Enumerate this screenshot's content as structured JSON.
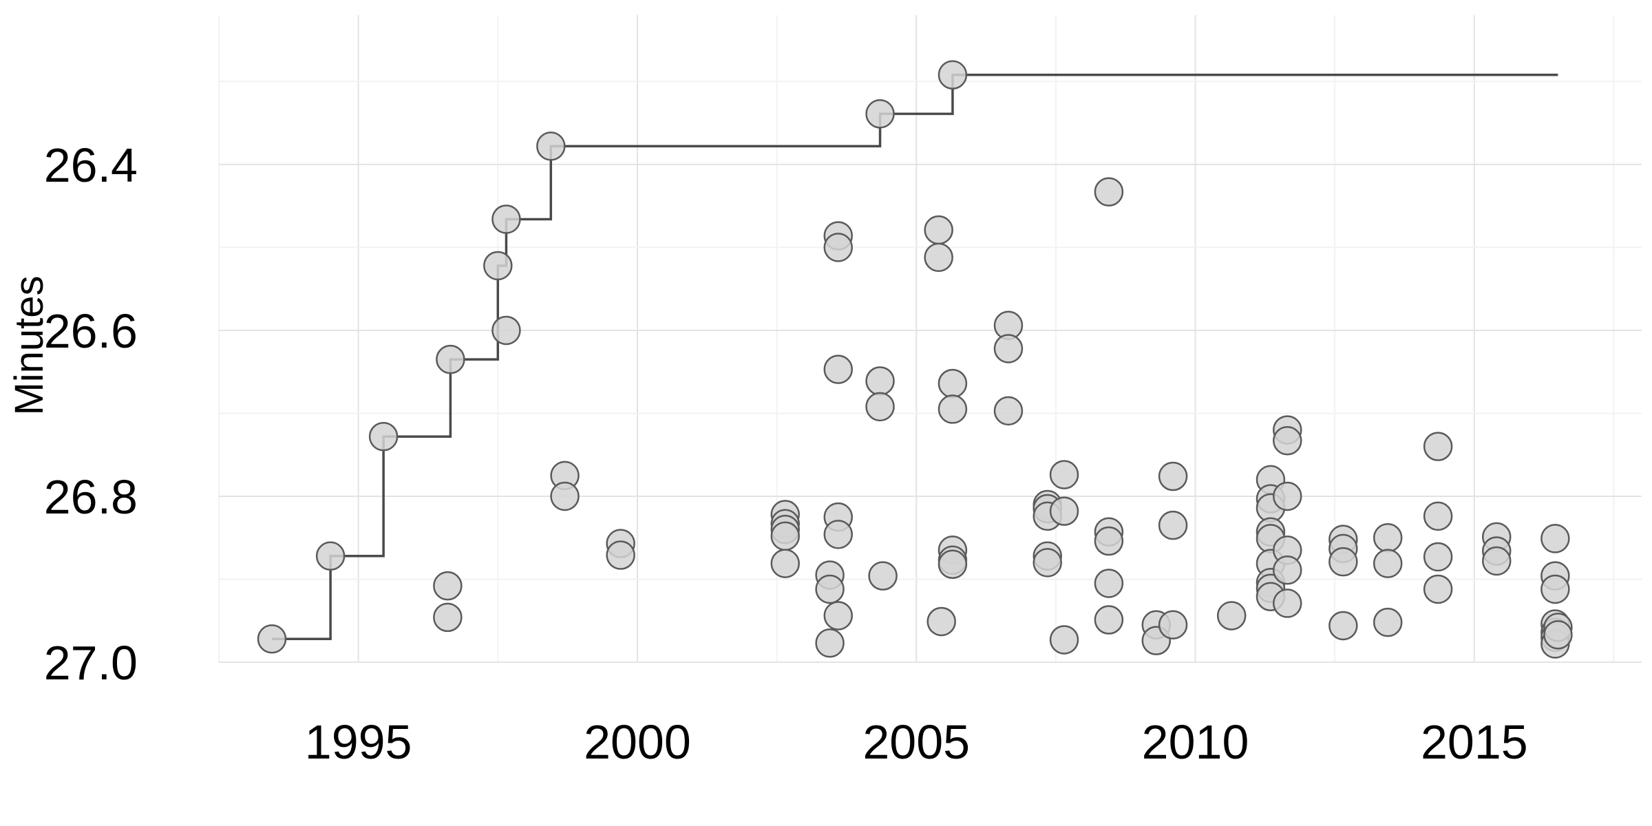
{
  "chart_data": {
    "type": "scatter",
    "title": "",
    "xlabel": "",
    "ylabel": "Minutes",
    "x_unit": "year",
    "xlim": [
      1992.5,
      2018
    ],
    "ylim": [
      27.0,
      26.22
    ],
    "y_axis_inverted": true,
    "x_ticks": [
      1995,
      2000,
      2005,
      2010,
      2015
    ],
    "x_tick_labels": [
      "1995",
      "2000",
      "2005",
      "2010",
      "2015"
    ],
    "y_ticks": [
      26.4,
      26.6,
      26.8,
      27.0
    ],
    "y_tick_labels": [
      "26.4",
      "26.6",
      "26.8",
      "27.0"
    ],
    "grid": true,
    "legend": "none",
    "colors": {
      "point_fill": "#d3d3d3",
      "point_stroke": "#5a5a5a",
      "line": "#4a4a4a",
      "grid_major": "#e3e3e3",
      "grid_minor": "#f2f2f2"
    },
    "series": [
      {
        "type": "scatter",
        "points": [
          [
            1993.45,
            26.972
          ],
          [
            1994.5,
            26.872
          ],
          [
            1995.45,
            26.728
          ],
          [
            1996.6,
            26.908
          ],
          [
            1996.6,
            26.946
          ],
          [
            1996.65,
            26.635
          ],
          [
            1997.5,
            26.522
          ],
          [
            1997.65,
            26.466
          ],
          [
            1997.65,
            26.6
          ],
          [
            1998.45,
            26.378
          ],
          [
            1998.7,
            26.775
          ],
          [
            1998.7,
            26.8
          ],
          [
            1999.7,
            26.857
          ],
          [
            1999.7,
            26.871
          ],
          [
            2002.65,
            26.822
          ],
          [
            2002.65,
            26.833
          ],
          [
            2002.65,
            26.84
          ],
          [
            2002.65,
            26.848
          ],
          [
            2002.65,
            26.881
          ],
          [
            2003.45,
            26.895
          ],
          [
            2003.45,
            26.912
          ],
          [
            2003.45,
            26.977
          ],
          [
            2003.6,
            26.486
          ],
          [
            2003.6,
            26.5
          ],
          [
            2003.6,
            26.647
          ],
          [
            2003.6,
            26.825
          ],
          [
            2003.6,
            26.846
          ],
          [
            2003.6,
            26.944
          ],
          [
            2004.35,
            26.339
          ],
          [
            2004.35,
            26.661
          ],
          [
            2004.35,
            26.692
          ],
          [
            2004.4,
            26.896
          ],
          [
            2005.4,
            26.479
          ],
          [
            2005.4,
            26.512
          ],
          [
            2005.45,
            26.951
          ],
          [
            2005.65,
            26.292
          ],
          [
            2005.65,
            26.664
          ],
          [
            2005.65,
            26.695
          ],
          [
            2005.65,
            26.865
          ],
          [
            2005.65,
            26.877
          ],
          [
            2005.65,
            26.882
          ],
          [
            2006.65,
            26.594
          ],
          [
            2006.65,
            26.622
          ],
          [
            2006.65,
            26.697
          ],
          [
            2007.35,
            26.81
          ],
          [
            2007.35,
            26.815
          ],
          [
            2007.35,
            26.824
          ],
          [
            2007.35,
            26.872
          ],
          [
            2007.35,
            26.88
          ],
          [
            2007.65,
            26.774
          ],
          [
            2007.65,
            26.818
          ],
          [
            2007.65,
            26.973
          ],
          [
            2008.45,
            26.433
          ],
          [
            2008.45,
            26.843
          ],
          [
            2008.45,
            26.854
          ],
          [
            2008.45,
            26.905
          ],
          [
            2008.45,
            26.949
          ],
          [
            2009.3,
            26.955
          ],
          [
            2009.3,
            26.974
          ],
          [
            2009.6,
            26.776
          ],
          [
            2009.6,
            26.835
          ],
          [
            2009.6,
            26.955
          ],
          [
            2010.65,
            26.944
          ],
          [
            2011.35,
            26.78
          ],
          [
            2011.35,
            26.803
          ],
          [
            2011.35,
            26.814
          ],
          [
            2011.35,
            26.843
          ],
          [
            2011.35,
            26.851
          ],
          [
            2011.35,
            26.881
          ],
          [
            2011.35,
            26.904
          ],
          [
            2011.35,
            26.911
          ],
          [
            2011.35,
            26.921
          ],
          [
            2011.65,
            26.72
          ],
          [
            2011.65,
            26.733
          ],
          [
            2011.65,
            26.8
          ],
          [
            2011.65,
            26.865
          ],
          [
            2011.65,
            26.889
          ],
          [
            2011.65,
            26.929
          ],
          [
            2012.65,
            26.852
          ],
          [
            2012.65,
            26.863
          ],
          [
            2012.65,
            26.879
          ],
          [
            2012.65,
            26.956
          ],
          [
            2013.45,
            26.85
          ],
          [
            2013.45,
            26.881
          ],
          [
            2013.45,
            26.952
          ],
          [
            2014.35,
            26.74
          ],
          [
            2014.35,
            26.824
          ],
          [
            2014.35,
            26.873
          ],
          [
            2014.35,
            26.912
          ],
          [
            2015.4,
            26.849
          ],
          [
            2015.4,
            26.866
          ],
          [
            2015.4,
            26.878
          ],
          [
            2016.45,
            26.851
          ],
          [
            2016.45,
            26.896
          ],
          [
            2016.45,
            26.912
          ],
          [
            2016.45,
            26.954
          ],
          [
            2016.45,
            26.964
          ],
          [
            2016.45,
            26.97
          ],
          [
            2016.45,
            26.978
          ],
          [
            2016.5,
            26.958
          ],
          [
            2016.5,
            26.967
          ]
        ]
      },
      {
        "type": "step",
        "x": [
          1993.45,
          1994.5,
          1995.45,
          1996.65,
          1997.5,
          1997.65,
          1998.45,
          2004.35,
          2005.65,
          2016.5
        ],
        "y": [
          26.972,
          26.872,
          26.728,
          26.635,
          26.522,
          26.466,
          26.378,
          26.339,
          26.292,
          26.292
        ]
      }
    ]
  }
}
